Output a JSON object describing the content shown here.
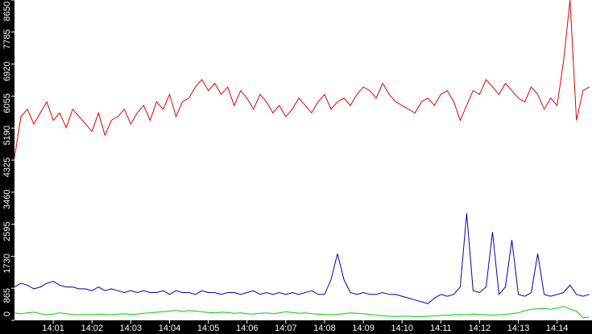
{
  "chart_data": {
    "type": "line",
    "categories": [
      null,
      null,
      null,
      null,
      null,
      null,
      "14:01",
      null,
      null,
      null,
      null,
      null,
      "14:02",
      null,
      null,
      null,
      null,
      null,
      "14:03",
      null,
      null,
      null,
      null,
      null,
      "14:04",
      null,
      null,
      null,
      null,
      null,
      "14:05",
      null,
      null,
      null,
      null,
      null,
      "14:06",
      null,
      null,
      null,
      null,
      null,
      "14:07",
      null,
      null,
      null,
      null,
      null,
      "14:08",
      null,
      null,
      null,
      null,
      null,
      "14:09",
      null,
      null,
      null,
      null,
      null,
      "14:10",
      null,
      null,
      null,
      null,
      null,
      "14:11",
      null,
      null,
      null,
      null,
      null,
      "14:12",
      null,
      null,
      null,
      null,
      null,
      "14:13",
      null,
      null,
      null,
      null,
      null,
      "14:14",
      null,
      null,
      null,
      null,
      null
    ],
    "series": [
      {
        "color": "#e00000",
        "values": [
          4400,
          5500,
          5700,
          5300,
          5600,
          5900,
          5400,
          5600,
          5200,
          5700,
          5500,
          5300,
          5100,
          5600,
          5000,
          5400,
          5500,
          5700,
          5300,
          5600,
          5800,
          5400,
          5900,
          5700,
          6100,
          5500,
          5900,
          6000,
          6300,
          6500,
          6200,
          6400,
          6100,
          6300,
          5800,
          6200,
          6000,
          5700,
          6100,
          5900,
          5600,
          5800,
          5500,
          5700,
          6000,
          5800,
          5600,
          5900,
          6100,
          5700,
          5900,
          6000,
          5800,
          6100,
          6300,
          6200,
          6000,
          6400,
          6100,
          5900,
          5800,
          5700,
          5600,
          5900,
          6000,
          5800,
          6100,
          6200,
          5900,
          5400,
          5800,
          6200,
          6100,
          6500,
          6300,
          6100,
          6400,
          6200,
          6000,
          5900,
          6300,
          6100,
          5700,
          6000,
          5800,
          7000,
          8650,
          5400,
          6200,
          6300
        ]
      },
      {
        "color": "#0000b0",
        "values": [
          900,
          1000,
          950,
          850,
          900,
          1000,
          1050,
          950,
          900,
          900,
          850,
          850,
          800,
          900,
          800,
          850,
          800,
          750,
          800,
          750,
          800,
          750,
          750,
          800,
          700,
          800,
          750,
          750,
          700,
          800,
          750,
          750,
          700,
          750,
          750,
          700,
          750,
          800,
          700,
          750,
          700,
          750,
          700,
          750,
          700,
          750,
          800,
          700,
          700,
          1100,
          1800,
          1100,
          750,
          700,
          750,
          700,
          700,
          750,
          700,
          700,
          650,
          600,
          550,
          500,
          450,
          600,
          700,
          650,
          700,
          900,
          2890,
          800,
          750,
          900,
          2390,
          700,
          900,
          2170,
          700,
          650,
          750,
          1800,
          700,
          650,
          700,
          750,
          950,
          700,
          650,
          700
        ]
      },
      {
        "color": "#00d000",
        "values": [
          200,
          180,
          200,
          220,
          180,
          150,
          170,
          200,
          180,
          160,
          150,
          160,
          150,
          170,
          160,
          150,
          170,
          180,
          160,
          170,
          190,
          200,
          220,
          230,
          250,
          270,
          240,
          260,
          250,
          230,
          210,
          200,
          220,
          210,
          190,
          200,
          180,
          170,
          190,
          200,
          180,
          200,
          230,
          210,
          190,
          200,
          180,
          170,
          160,
          150,
          160,
          180,
          200,
          190,
          180,
          160,
          140,
          120,
          110,
          100,
          110,
          110,
          100,
          100,
          110,
          120,
          130,
          140,
          150,
          160,
          150,
          170,
          160,
          150,
          140,
          150,
          160,
          180,
          200,
          260,
          300,
          310,
          320,
          300,
          330,
          380,
          300,
          250,
          70,
          90
        ]
      }
    ],
    "ylim": [
      0,
      8650
    ],
    "yticks": [
      0,
      865,
      1730,
      2595,
      3460,
      4325,
      5190,
      6055,
      6920,
      7785,
      8650
    ],
    "grid": false
  }
}
